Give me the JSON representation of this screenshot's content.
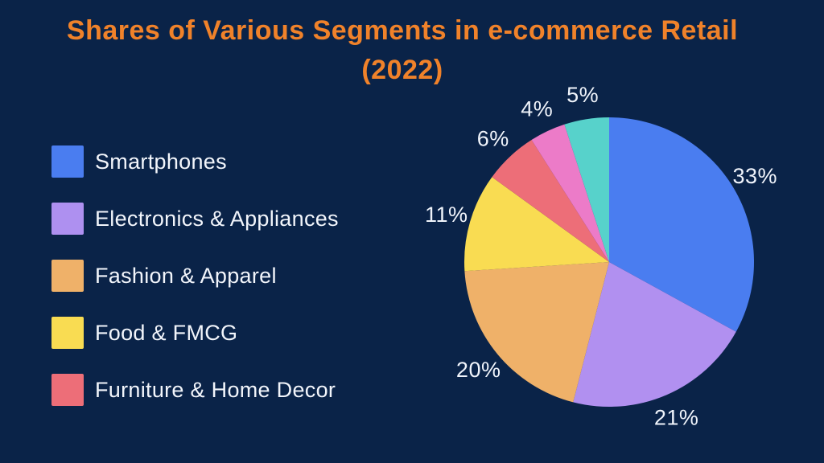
{
  "title": {
    "line1": "Shares of Various Segments in e-commerce Retail",
    "line2": "(2022)"
  },
  "colors": {
    "background": "#0A2348",
    "title_text": "#F0822A",
    "legend_text": "#F2F5FB",
    "pie_label_text": "#F0F4FB"
  },
  "legend": [
    {
      "label": "Smartphones",
      "color": "#4A7DF0"
    },
    {
      "label": "Electronics & Appliances",
      "color": "#AE90F0"
    },
    {
      "label": "Fashion & Apparel",
      "color": "#EFB169"
    },
    {
      "label": "Food & FMCG",
      "color": "#F9DC52"
    },
    {
      "label": "Furniture & Home Decor",
      "color": "#ED6E78"
    }
  ],
  "chart_data": {
    "type": "pie",
    "title": "Shares of Various Segments in e-commerce Retail (2022)",
    "start_angle_deg": 0,
    "direction": "clockwise",
    "legend_position": "left",
    "total": 100,
    "segments": [
      {
        "label": "Smartphones",
        "value": 33,
        "display": "33%",
        "color": "#4A7DF0"
      },
      {
        "label": "Electronics & Appliances",
        "value": 21,
        "display": "21%",
        "color": "#B190F0"
      },
      {
        "label": "Fashion & Apparel",
        "value": 20,
        "display": "20%",
        "color": "#EFB169"
      },
      {
        "label": "Food & FMCG",
        "value": 11,
        "display": "11%",
        "color": "#F9DC52"
      },
      {
        "label": "Furniture & Home Decor",
        "value": 6,
        "display": "6%",
        "color": "#ED6E78"
      },
      {
        "label": "",
        "value": 4,
        "display": "4%",
        "color": "#EC7BC8"
      },
      {
        "label": "",
        "value": 5,
        "display": "5%",
        "color": "#57D2CB"
      }
    ]
  }
}
